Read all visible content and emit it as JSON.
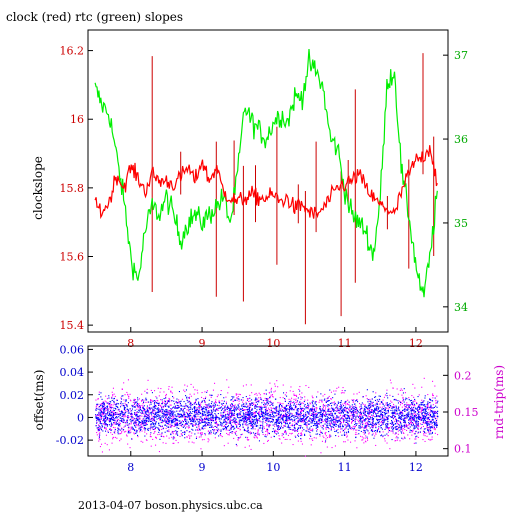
{
  "title": "clock (red) rtc (green) slopes",
  "footer": "2013-04-07 boson.physics.ubc.ca",
  "colors": {
    "clock": "#ff0000",
    "rtc": "#00ee00",
    "offset": "#0000ff",
    "roundtrip": "#ff00ff",
    "top_left_ticks": "#cc0000",
    "top_right_ticks": "#00aa00",
    "top_x_ticks": "#cc0000",
    "bottom_left_ticks": "#0000cc",
    "bottom_right_ticks": "#cc00cc",
    "bottom_x_ticks": "#0000cc"
  },
  "chart_data": [
    {
      "type": "line",
      "title": "clock (red) rtc (green) slopes",
      "xlim": [
        7.4,
        12.45
      ],
      "x_ticks": [
        8,
        9,
        10,
        11,
        12
      ],
      "x_tick_labels": [
        "8",
        "9",
        "10",
        "11",
        "12"
      ],
      "ylabel": "clockslope",
      "ylim": [
        15.38,
        16.26
      ],
      "y_ticks": [
        15.4,
        15.6,
        15.8,
        16,
        16.2
      ],
      "y_tick_labels": [
        "15.4",
        "15.6",
        "15.8",
        "16",
        "16.2"
      ],
      "y2lim": [
        33.7,
        37.3
      ],
      "y2_ticks": [
        34,
        35,
        36,
        37
      ],
      "y2_tick_labels": [
        "34",
        "35",
        "36",
        "37"
      ],
      "grid": false,
      "series": [
        {
          "axis": "y",
          "x": [
            7.5,
            7.6,
            7.7,
            7.8,
            7.9,
            8.0,
            8.1,
            8.2,
            8.3,
            8.4,
            8.5,
            8.6,
            8.7,
            8.8,
            8.9,
            9.0,
            9.1,
            9.2,
            9.3,
            9.4,
            9.5,
            9.6,
            9.7,
            9.8,
            9.9,
            10.0,
            10.1,
            10.2,
            10.3,
            10.4,
            10.5,
            10.6,
            10.7,
            10.8,
            10.9,
            11.0,
            11.1,
            11.2,
            11.3,
            11.4,
            11.5,
            11.6,
            11.7,
            11.8,
            11.9,
            12.0,
            12.1,
            12.2,
            12.3
          ],
          "y": [
            15.75,
            15.73,
            15.76,
            15.84,
            15.8,
            15.86,
            15.83,
            15.79,
            15.84,
            15.82,
            15.82,
            15.81,
            15.83,
            15.86,
            15.82,
            15.88,
            15.82,
            15.86,
            15.79,
            15.77,
            15.76,
            15.77,
            15.78,
            15.77,
            15.77,
            15.78,
            15.76,
            15.77,
            15.74,
            15.75,
            15.73,
            15.72,
            15.74,
            15.77,
            15.8,
            15.81,
            15.82,
            15.84,
            15.8,
            15.77,
            15.75,
            15.74,
            15.72,
            15.79,
            15.84,
            15.88,
            15.89,
            15.92,
            15.81
          ]
        },
        {
          "axis": "y2",
          "x": [
            7.5,
            7.6,
            7.7,
            7.8,
            7.9,
            8.0,
            8.1,
            8.2,
            8.3,
            8.4,
            8.5,
            8.6,
            8.7,
            8.8,
            8.9,
            9.0,
            9.1,
            9.2,
            9.3,
            9.4,
            9.5,
            9.6,
            9.7,
            9.8,
            9.9,
            10.0,
            10.1,
            10.2,
            10.3,
            10.4,
            10.5,
            10.6,
            10.7,
            10.8,
            10.9,
            11.0,
            11.1,
            11.2,
            11.3,
            11.4,
            11.5,
            11.6,
            11.7,
            11.8,
            11.9,
            12.0,
            12.1,
            12.2,
            12.3
          ],
          "y": [
            36.6,
            36.4,
            36.3,
            35.8,
            35.3,
            34.6,
            34.3,
            34.9,
            35.2,
            35.1,
            35.3,
            35.1,
            34.8,
            35.0,
            35.1,
            35.0,
            35.1,
            35.2,
            35.3,
            35.0,
            35.6,
            36.4,
            36.2,
            36.1,
            36.0,
            36.2,
            36.3,
            36.2,
            36.5,
            36.5,
            36.9,
            36.8,
            36.6,
            36.0,
            35.9,
            35.4,
            35.1,
            35.0,
            34.9,
            34.6,
            35.3,
            36.7,
            36.8,
            35.6,
            35.1,
            34.5,
            34.1,
            34.6,
            35.4
          ]
        }
      ]
    },
    {
      "type": "scatter",
      "xlim": [
        7.4,
        12.45
      ],
      "x_ticks": [
        8,
        9,
        10,
        11,
        12
      ],
      "x_tick_labels": [
        "8",
        "9",
        "10",
        "11",
        "12"
      ],
      "ylabel": "offset(ms)",
      "ylim": [
        -0.034,
        0.063
      ],
      "y_ticks": [
        -0.02,
        0,
        0.02,
        0.04,
        0.06
      ],
      "y_tick_labels": [
        "-0.02",
        "0",
        "0.02",
        "0.04",
        "0.06"
      ],
      "y2label": "rnd-trip(ms)",
      "y2lim": [
        0.09,
        0.24
      ],
      "y2_ticks": [
        0.1,
        0.15,
        0.2
      ],
      "y2_tick_labels": [
        "0.1",
        "0.15",
        "0.2"
      ],
      "grid": false,
      "series": [
        {
          "axis": "y",
          "x_range": [
            7.5,
            12.3
          ],
          "y_band": [
            -0.015,
            0.018
          ],
          "y_center": 0.002
        },
        {
          "axis": "y2",
          "x_range": [
            7.5,
            12.3
          ],
          "y_band": [
            0.115,
            0.185
          ],
          "y_center": 0.145
        }
      ]
    }
  ]
}
